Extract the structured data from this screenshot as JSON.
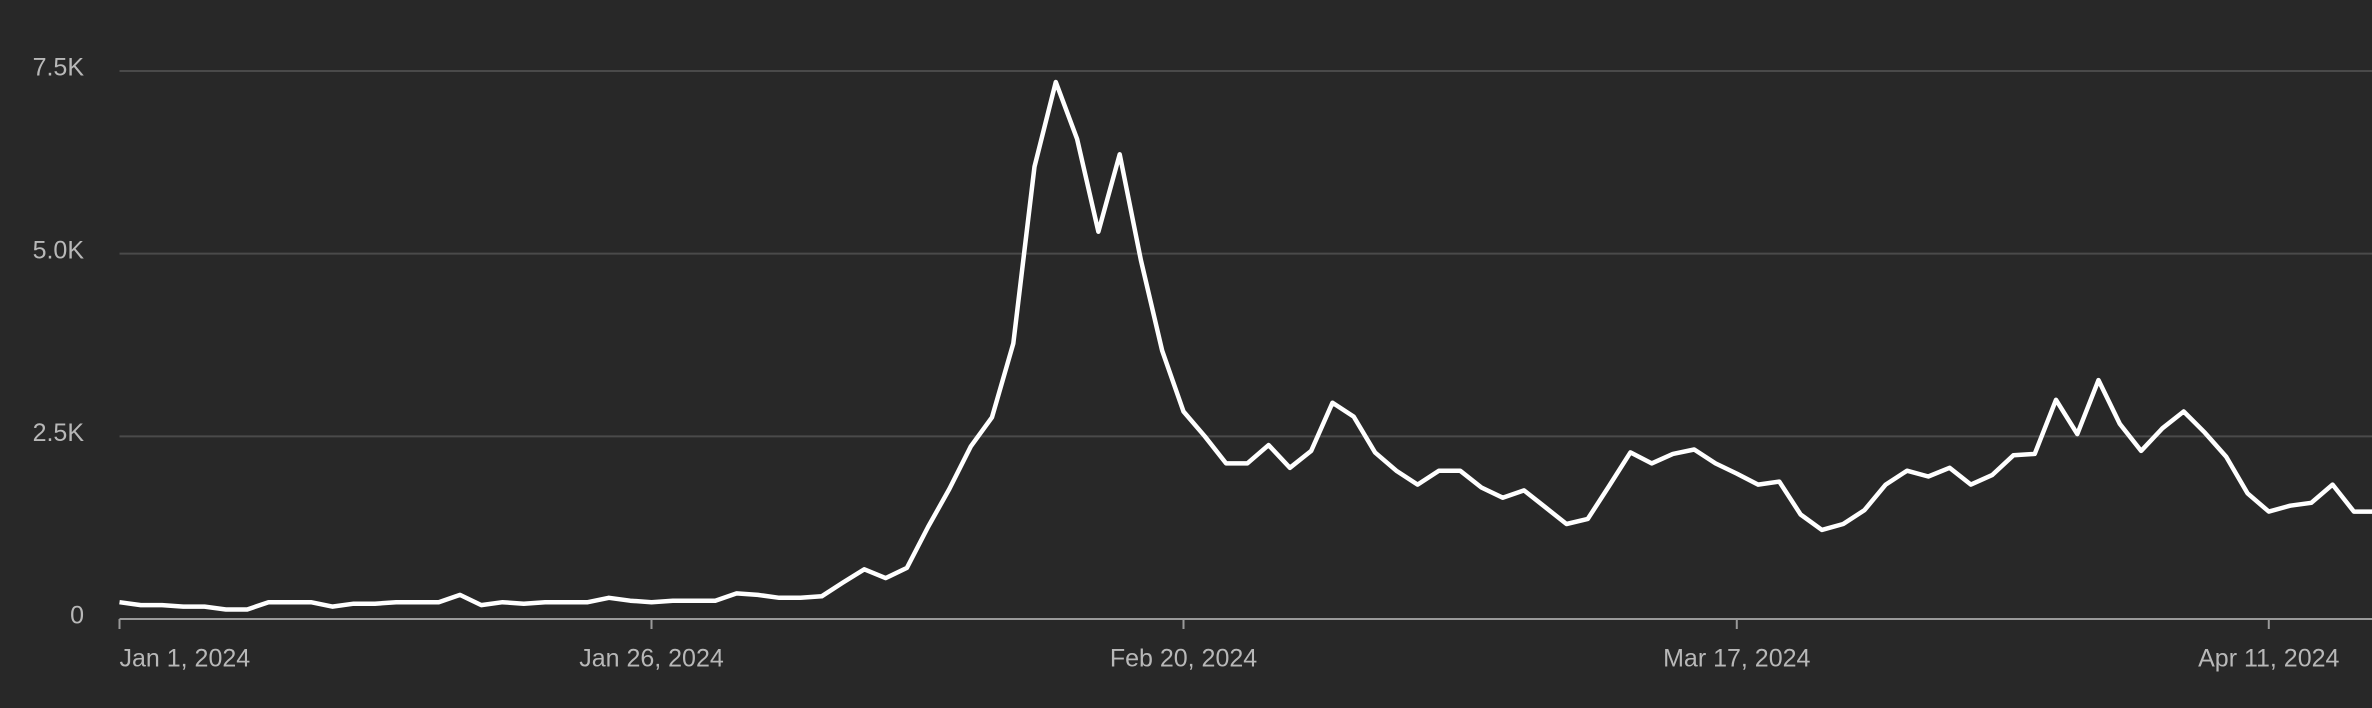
{
  "chart_data": {
    "type": "line",
    "x": [
      "2024-01-01",
      "2024-01-02",
      "2024-01-03",
      "2024-01-04",
      "2024-01-05",
      "2024-01-06",
      "2024-01-07",
      "2024-01-08",
      "2024-01-09",
      "2024-01-10",
      "2024-01-11",
      "2024-01-12",
      "2024-01-13",
      "2024-01-14",
      "2024-01-15",
      "2024-01-16",
      "2024-01-17",
      "2024-01-18",
      "2024-01-19",
      "2024-01-20",
      "2024-01-21",
      "2024-01-22",
      "2024-01-23",
      "2024-01-24",
      "2024-01-25",
      "2024-01-26",
      "2024-01-27",
      "2024-01-28",
      "2024-01-29",
      "2024-01-30",
      "2024-01-31",
      "2024-02-01",
      "2024-02-02",
      "2024-02-03",
      "2024-02-04",
      "2024-02-05",
      "2024-02-06",
      "2024-02-07",
      "2024-02-08",
      "2024-02-09",
      "2024-02-10",
      "2024-02-11",
      "2024-02-12",
      "2024-02-13",
      "2024-02-14",
      "2024-02-15",
      "2024-02-16",
      "2024-02-17",
      "2024-02-18",
      "2024-02-19",
      "2024-02-20",
      "2024-02-21",
      "2024-02-22",
      "2024-02-23",
      "2024-02-24",
      "2024-02-25",
      "2024-02-26",
      "2024-02-27",
      "2024-02-28",
      "2024-02-29",
      "2024-03-01",
      "2024-03-02",
      "2024-03-03",
      "2024-03-04",
      "2024-03-05",
      "2024-03-06",
      "2024-03-07",
      "2024-03-08",
      "2024-03-09",
      "2024-03-10",
      "2024-03-11",
      "2024-03-12",
      "2024-03-13",
      "2024-03-14",
      "2024-03-15",
      "2024-03-16",
      "2024-03-17",
      "2024-03-18",
      "2024-03-19",
      "2024-03-20",
      "2024-03-21",
      "2024-03-22",
      "2024-03-23",
      "2024-03-24",
      "2024-03-25",
      "2024-03-26",
      "2024-03-27",
      "2024-03-28",
      "2024-03-29",
      "2024-03-30",
      "2024-03-31",
      "2024-04-01",
      "2024-04-02",
      "2024-04-03",
      "2024-04-04",
      "2024-04-05",
      "2024-04-06",
      "2024-04-07",
      "2024-04-08",
      "2024-04-09",
      "2024-04-10",
      "2024-04-11",
      "2024-04-12",
      "2024-04-13",
      "2024-04-14",
      "2024-04-15",
      "2024-04-16"
    ],
    "series": [
      {
        "color": "#ffffff",
        "values": [
          230,
          190,
          190,
          170,
          170,
          130,
          130,
          230,
          230,
          230,
          170,
          210,
          210,
          230,
          230,
          230,
          330,
          190,
          230,
          210,
          230,
          230,
          230,
          290,
          250,
          230,
          250,
          250,
          250,
          350,
          330,
          290,
          290,
          310,
          500,
          680,
          560,
          700,
          1260,
          1780,
          2360,
          2760,
          3770,
          6190,
          7350,
          6570,
          5300,
          6360,
          4910,
          3670,
          2840,
          2500,
          2130,
          2130,
          2380,
          2070,
          2300,
          2960,
          2770,
          2280,
          2030,
          1840,
          2030,
          2030,
          1800,
          1660,
          1760,
          1530,
          1300,
          1370,
          1820,
          2280,
          2130,
          2260,
          2320,
          2130,
          1990,
          1840,
          1880,
          1430,
          1220,
          1300,
          1490,
          1840,
          2030,
          1950,
          2070,
          1840,
          1970,
          2240,
          2260,
          3000,
          2530,
          3270,
          2670,
          2300,
          2610,
          2840,
          2550,
          2220,
          1720,
          1470,
          1550,
          1590,
          1840,
          1470,
          1470
        ]
      }
    ],
    "xlim": [
      "2024-01-01",
      "2024-04-16"
    ],
    "xticks": [
      {
        "value": "2024-01-01",
        "label": "Jan 1, 2024"
      },
      {
        "value": "2024-01-26",
        "label": "Jan 26, 2024"
      },
      {
        "value": "2024-02-20",
        "label": "Feb 20, 2024"
      },
      {
        "value": "2024-03-17",
        "label": "Mar 17, 2024"
      },
      {
        "value": "2024-04-11",
        "label": "Apr 11, 2024"
      }
    ],
    "ylim": [
      0,
      7500
    ],
    "yticks": [
      0,
      {
        "value": 2500,
        "label": "2.5K"
      },
      {
        "value": 5000,
        "label": "5.0K"
      },
      {
        "value": 7500,
        "label": "7.5K"
      }
    ],
    "grid": true
  }
}
